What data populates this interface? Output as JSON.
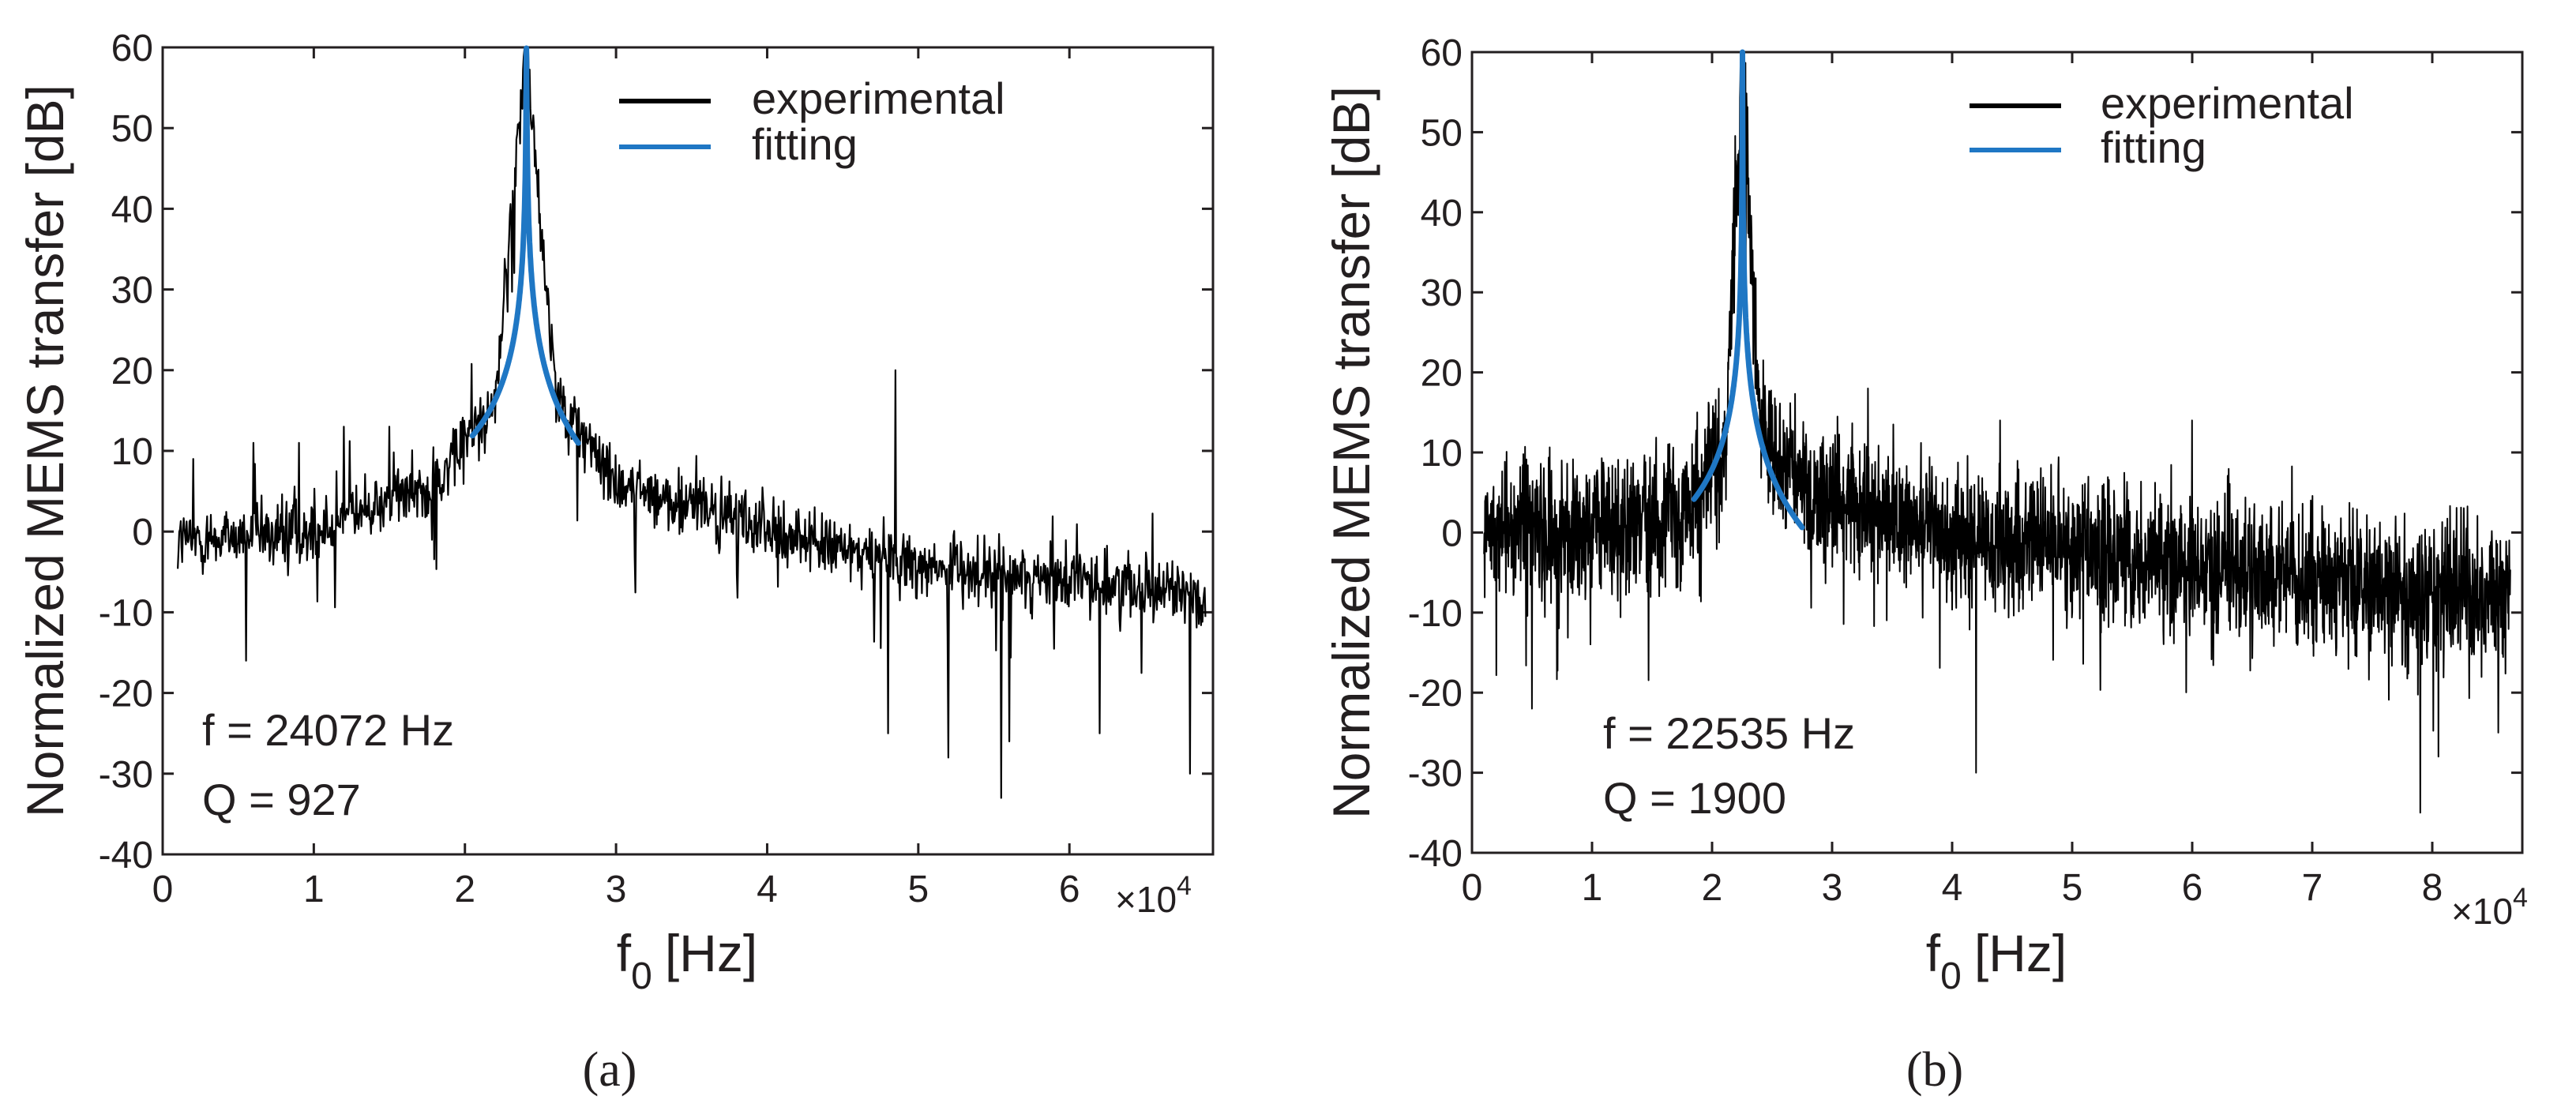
{
  "chart_data": [
    {
      "type": "line",
      "panel_caption": "(a)",
      "xlabel": "f",
      "xlabel_sub": "0",
      "xlabel_unit": "[Hz]",
      "ylabel": "Normalized MEMS transfer [dB]",
      "x_multiplier": "×10",
      "x_multiplier_exp": "4",
      "xlim": [
        0,
        69500
      ],
      "ylim": [
        -40,
        60
      ],
      "xticks": [
        0,
        10000,
        20000,
        30000,
        40000,
        50000,
        60000
      ],
      "xtick_labels": [
        "0",
        "1",
        "2",
        "3",
        "4",
        "5",
        "6"
      ],
      "yticks": [
        -40,
        -30,
        -20,
        -10,
        0,
        10,
        20,
        30,
        40,
        50,
        60
      ],
      "ytick_labels": [
        "-40",
        "-30",
        "-20",
        "-10",
        "0",
        "10",
        "20",
        "30",
        "40",
        "50",
        "60"
      ],
      "legend": [
        "experimental",
        "fitting"
      ],
      "annotations": [
        "f = 24072 Hz",
        "Q = 927"
      ],
      "colors": {
        "experimental": "#000000",
        "fitting": "#1f77c4"
      },
      "resonance_hz": 24072,
      "q_factor": 927,
      "series": [
        {
          "name": "experimental",
          "x_range": [
            1000,
            69000
          ],
          "samples": 1400,
          "noise_db": 2.8,
          "trend_x": [
            1000,
            10000,
            18000,
            22000,
            24072,
            26000,
            30000,
            40000,
            50000,
            60000,
            69000
          ],
          "trend_y": [
            -1,
            0,
            6,
            16,
            60,
            17,
            6,
            0,
            -4,
            -6,
            -8
          ],
          "spikes": [
            {
              "x": 2000,
              "y": 9
            },
            {
              "x": 6000,
              "y": 11
            },
            {
              "x": 9000,
              "y": 11
            },
            {
              "x": 12000,
              "y": 13
            },
            {
              "x": 15000,
              "y": 13
            },
            {
              "x": 48500,
              "y": 20
            },
            {
              "x": 5500,
              "y": -16
            },
            {
              "x": 48000,
              "y": -25
            },
            {
              "x": 52000,
              "y": -28
            },
            {
              "x": 55500,
              "y": -33
            },
            {
              "x": 56000,
              "y": -26
            },
            {
              "x": 62000,
              "y": -25
            },
            {
              "x": 68000,
              "y": -30
            }
          ]
        },
        {
          "name": "fitting",
          "x_range": [
            20500,
            27500
          ],
          "peak_db": 60,
          "line_width": "thick"
        }
      ]
    },
    {
      "type": "line",
      "panel_caption": "(b)",
      "xlabel": "f",
      "xlabel_sub": "0",
      "xlabel_unit": "[Hz]",
      "ylabel": "Normalized MEMS transfer [dB]",
      "x_multiplier": "×10",
      "x_multiplier_exp": "4",
      "xlim": [
        0,
        87500
      ],
      "ylim": [
        -40,
        60
      ],
      "xticks": [
        0,
        10000,
        20000,
        30000,
        40000,
        50000,
        60000,
        70000,
        80000
      ],
      "xtick_labels": [
        "0",
        "1",
        "2",
        "3",
        "4",
        "5",
        "6",
        "7",
        "8"
      ],
      "yticks": [
        -40,
        -30,
        -20,
        -10,
        0,
        10,
        20,
        30,
        40,
        50,
        60
      ],
      "ytick_labels": [
        "-40",
        "-30",
        "-20",
        "-10",
        "0",
        "10",
        "20",
        "30",
        "40",
        "50",
        "60"
      ],
      "legend": [
        "experimental",
        "fitting"
      ],
      "annotations": [
        "f = 22535 Hz",
        "Q = 1900"
      ],
      "colors": {
        "experimental": "#000000",
        "fitting": "#1f77c4"
      },
      "resonance_hz": 22535,
      "q_factor": 1900,
      "series": [
        {
          "name": "experimental",
          "x_range": [
            1000,
            86500
          ],
          "samples": 3000,
          "noise_db": 6,
          "trend_x": [
            1000,
            10000,
            18000,
            21000,
            22535,
            24000,
            28000,
            40000,
            55000,
            70000,
            86500
          ],
          "trend_y": [
            0,
            0,
            3,
            10,
            60,
            12,
            5,
            0,
            -3,
            -6,
            -8
          ],
          "spikes": [
            {
              "x": 33000,
              "y": 18
            },
            {
              "x": 44000,
              "y": 14
            },
            {
              "x": 60000,
              "y": 14
            },
            {
              "x": 5000,
              "y": -22
            },
            {
              "x": 42000,
              "y": -30
            },
            {
              "x": 79000,
              "y": -35
            },
            {
              "x": 80500,
              "y": -28
            },
            {
              "x": 85500,
              "y": -25
            }
          ]
        },
        {
          "name": "fitting",
          "x_range": [
            18500,
            27500
          ],
          "peak_db": 60,
          "line_width": "thick"
        }
      ]
    }
  ]
}
